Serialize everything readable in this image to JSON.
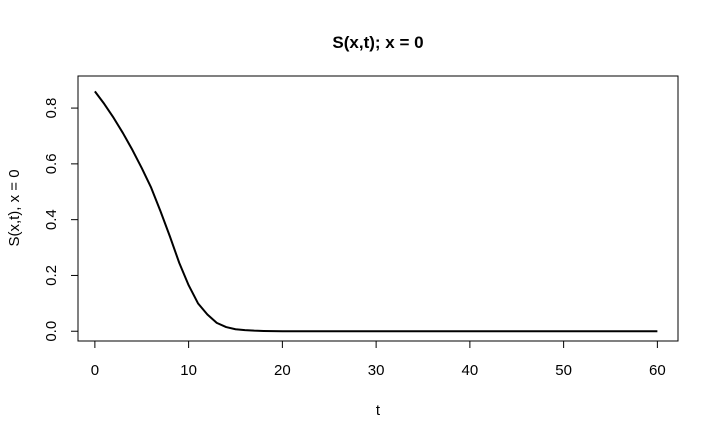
{
  "chart_data": {
    "type": "line",
    "title": "S(x,t); x = 0",
    "xlabel": "t",
    "ylabel": "S(x,t), x = 0",
    "xlim": [
      -1.8,
      62.2
    ],
    "ylim": [
      -0.035,
      0.915
    ],
    "xticks": [
      0,
      10,
      20,
      30,
      40,
      50,
      60
    ],
    "yticks": [
      0.0,
      0.2,
      0.4,
      0.6,
      0.8
    ],
    "ytick_labels": [
      "0.0",
      "0.2",
      "0.4",
      "0.6",
      "0.8"
    ],
    "grid": false,
    "line_color": "#000000",
    "series": [
      {
        "x": [
          0,
          1,
          2,
          3,
          4,
          5,
          6,
          7,
          8,
          9,
          10,
          11,
          12,
          13,
          14,
          15,
          16,
          17,
          18,
          20,
          25,
          30,
          40,
          50,
          60
        ],
        "y": [
          0.86,
          0.815,
          0.765,
          0.71,
          0.65,
          0.585,
          0.515,
          0.43,
          0.34,
          0.245,
          0.165,
          0.1,
          0.06,
          0.03,
          0.015,
          0.007,
          0.004,
          0.002,
          0.001,
          0.0,
          0.0,
          0.0,
          0.0,
          0.0,
          0.0
        ]
      }
    ]
  }
}
